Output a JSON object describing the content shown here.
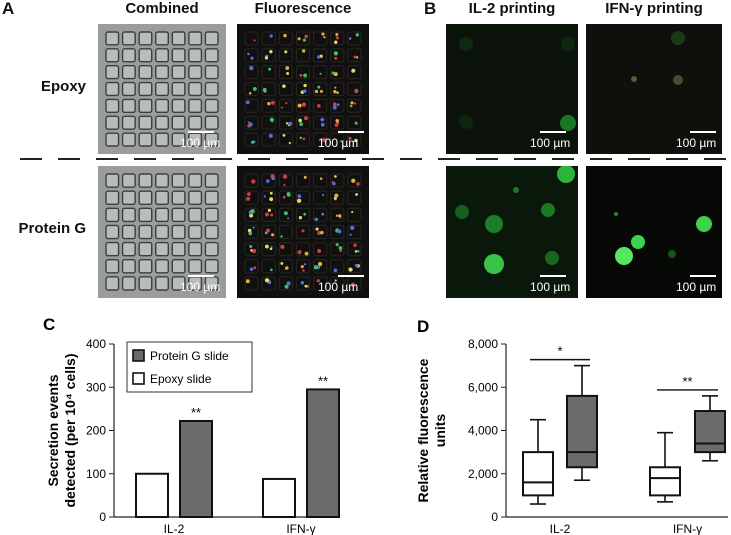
{
  "panel_a": {
    "letter": "A",
    "col_headers": [
      "Combined",
      "Fluorescence"
    ],
    "row_headers": [
      "Epoxy",
      "Protein G"
    ],
    "scale_label": "100 µm"
  },
  "panel_b": {
    "letter": "B",
    "col_headers": [
      "IL-2 printing",
      "IFN-γ printing"
    ],
    "scale_label": "100 µm"
  },
  "colors": {
    "gray_bar": "#6b6b6b",
    "white_bar": "#ffffff",
    "green_spot": "#2ecc40",
    "image_background": "#0c0c0c"
  },
  "chart_data": [
    {
      "panel": "C",
      "type": "bar",
      "ylabel": [
        "Secretion events",
        "detected (per 10⁴ cells)"
      ],
      "ylim": [
        0,
        400
      ],
      "yticks": [
        0,
        100,
        200,
        300,
        400
      ],
      "categories": [
        "IL-2",
        "IFN-γ"
      ],
      "series": [
        {
          "name": "Epoxy slide",
          "values": [
            100,
            88
          ],
          "fill": "#ffffff"
        },
        {
          "name": "Protein G slide",
          "values": [
            222,
            295
          ],
          "fill": "#6b6b6b"
        }
      ],
      "significance": [
        "**",
        "**"
      ],
      "legend_position": "top-left"
    },
    {
      "panel": "D",
      "type": "box",
      "ylabel": [
        "Relative fluorescence",
        "units"
      ],
      "ylim": [
        0,
        8000
      ],
      "yticks": [
        "0",
        "2,000",
        "4,000",
        "6,000",
        "8,000"
      ],
      "categories": [
        "IL-2",
        "IFN-γ"
      ],
      "boxes": [
        {
          "category": "IL-2",
          "group": "Epoxy slide",
          "min": 600,
          "q1": 1000,
          "median": 1600,
          "q3": 3000,
          "max": 4500,
          "fill": "#ffffff"
        },
        {
          "category": "IL-2",
          "group": "Protein G slide",
          "min": 1700,
          "q1": 2300,
          "median": 3000,
          "q3": 5600,
          "max": 7000,
          "fill": "#6b6b6b"
        },
        {
          "category": "IFN-γ",
          "group": "Epoxy slide",
          "min": 700,
          "q1": 1000,
          "median": 1800,
          "q3": 2300,
          "max": 3900,
          "fill": "#ffffff"
        },
        {
          "category": "IFN-γ",
          "group": "Protein G slide",
          "min": 2600,
          "q1": 3000,
          "median": 3400,
          "q3": 4900,
          "max": 5600,
          "fill": "#6b6b6b"
        }
      ],
      "significance": [
        "*",
        "**"
      ]
    }
  ]
}
